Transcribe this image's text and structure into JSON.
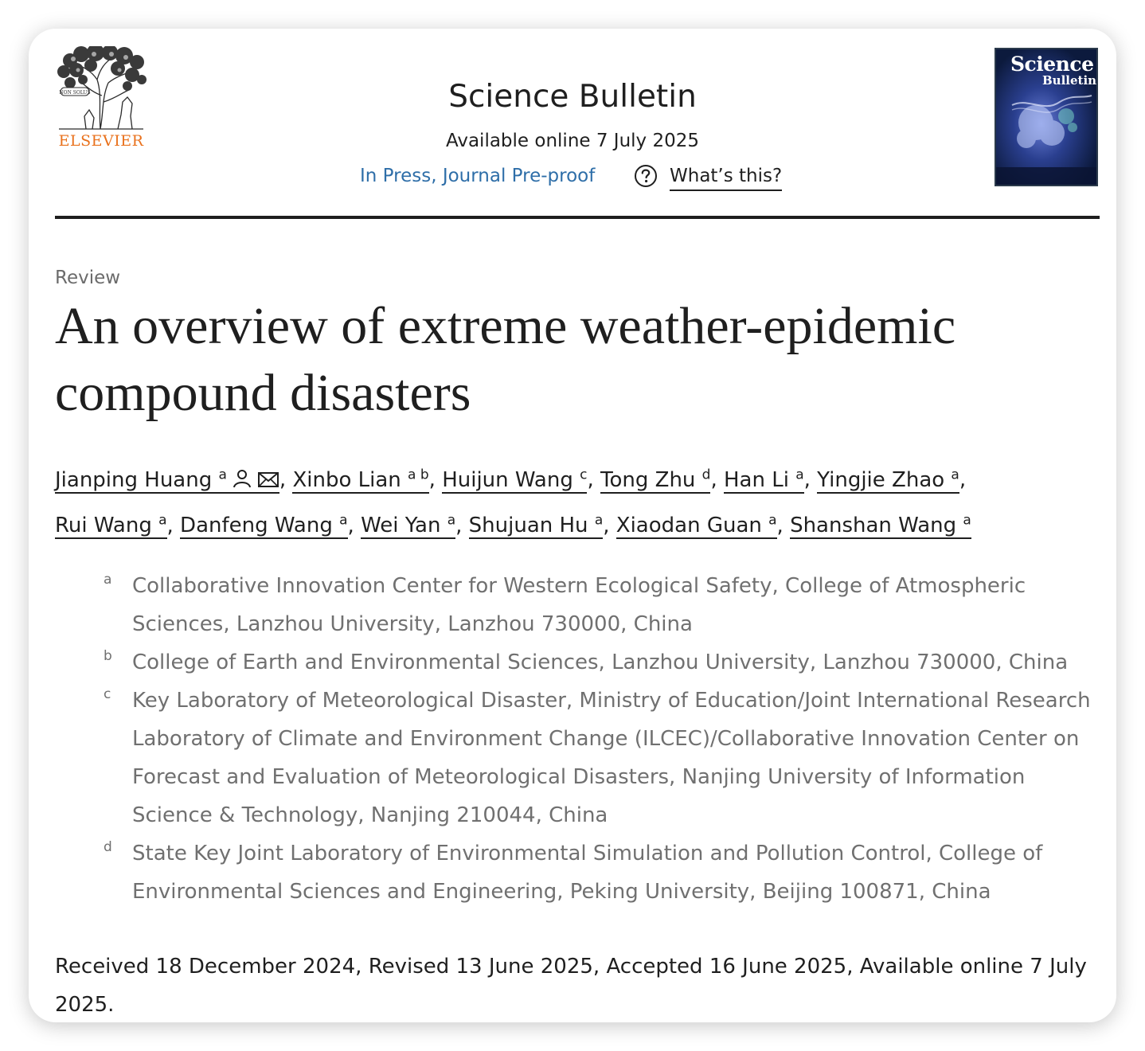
{
  "header": {
    "publisher": "ELSEVIER",
    "journal": "Science Bulletin",
    "available_online": "Available online 7 July 2025",
    "status_link": "In Press, Journal Pre-proof",
    "whats_this": "What’s this?",
    "cover": {
      "line1": "Science",
      "line2": "Bulletin"
    }
  },
  "article": {
    "type": "Review",
    "title": "An overview of extreme weather-epidemic compound disasters",
    "authors": [
      {
        "name": "Jianping Huang",
        "sup": "a"
      },
      {
        "name": "Xinbo Lian",
        "sup": "a b"
      },
      {
        "name": "Huijun Wang",
        "sup": "c"
      },
      {
        "name": "Tong Zhu",
        "sup": "d"
      },
      {
        "name": "Han Li",
        "sup": "a"
      },
      {
        "name": "Yingjie Zhao",
        "sup": "a"
      },
      {
        "name": "Rui Wang",
        "sup": "a"
      },
      {
        "name": "Danfeng Wang",
        "sup": "a"
      },
      {
        "name": "Wei Yan",
        "sup": "a"
      },
      {
        "name": "Shujuan Hu",
        "sup": "a"
      },
      {
        "name": "Xiaodan Guan",
        "sup": "a"
      },
      {
        "name": "Shanshan Wang",
        "sup": "a"
      }
    ],
    "affiliations": [
      {
        "mark": "a",
        "text": "Collaborative Innovation Center for Western Ecological Safety, College of Atmospheric Sciences, Lanzhou University, Lanzhou 730000, China"
      },
      {
        "mark": "b",
        "text": "College of Earth and Environmental Sciences, Lanzhou University, Lanzhou 730000, China"
      },
      {
        "mark": "c",
        "text": "Key Laboratory of Meteorological Disaster, Ministry of Education/Joint International Research Laboratory of Climate and Environment Change (ILCEC)/Collaborative Innovation Center on Forecast and Evaluation of Meteorological Disasters, Nanjing University of Information Science & Technology, Nanjing 210044, China"
      },
      {
        "mark": "d",
        "text": "State Key Joint Laboratory of Environmental Simulation and Pollution Control, College of Environmental Sciences and Engineering, Peking University, Beijing 100871, China"
      }
    ],
    "dates": "Received 18 December 2024, Revised 13 June 2025, Accepted 16 June 2025, Available online 7 July 2025."
  },
  "colors": {
    "link": "#2e6ea8",
    "publisher": "#e9711c",
    "muted": "#707070"
  },
  "icons": [
    "question-circle-icon",
    "person-icon",
    "mail-icon",
    "elsevier-tree-logo"
  ]
}
